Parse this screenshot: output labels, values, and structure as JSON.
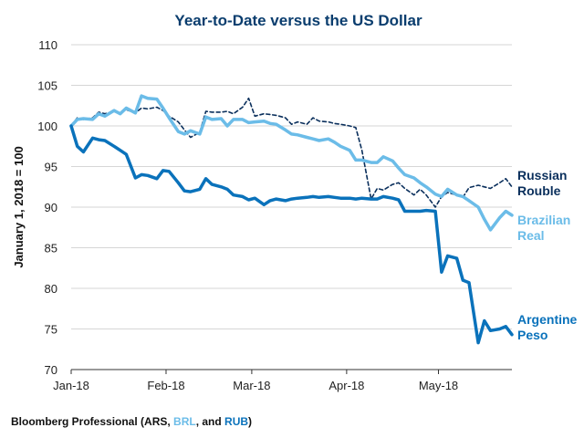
{
  "colors": {
    "title": "#0a3d6e",
    "rub": "#0a2f5c",
    "brl": "#6bbce8",
    "ars": "#0a72bb",
    "grid": "#d6d6d6",
    "axis": "#333333"
  },
  "chart_data": {
    "type": "line",
    "title": "Year-to-Date versus the US Dollar",
    "ylabel": "January 1, 2018 = 100",
    "xlabel": "",
    "ylim": [
      70,
      110
    ],
    "yticks": [
      "70",
      "75",
      "80",
      "85",
      "90",
      "95",
      "100",
      "105",
      "110"
    ],
    "xticks": [
      {
        "date": "2018-01-01",
        "label": "Jan-18"
      },
      {
        "date": "2018-02-01",
        "label": "Feb-18"
      },
      {
        "date": "2018-03-01",
        "label": "Mar-18"
      },
      {
        "date": "2018-04-01",
        "label": "Apr-18"
      },
      {
        "date": "2018-05-01",
        "label": "May-18"
      }
    ],
    "xrange": [
      "2018-01-01",
      "2018-05-25"
    ],
    "grid": "horizontal",
    "series": [
      {
        "key": "rub",
        "name": "Russian Rouble",
        "label_lines": [
          "Russian",
          "Rouble"
        ],
        "style": "dashed",
        "points": [
          [
            "2018-01-01",
            100
          ],
          [
            "2018-01-03",
            101
          ],
          [
            "2018-01-05",
            100.8
          ],
          [
            "2018-01-08",
            101
          ],
          [
            "2018-01-10",
            101.7
          ],
          [
            "2018-01-12",
            101.5
          ],
          [
            "2018-01-15",
            101.8
          ],
          [
            "2018-01-17",
            101.6
          ],
          [
            "2018-01-19",
            102
          ],
          [
            "2018-01-22",
            101.6
          ],
          [
            "2018-01-24",
            102.2
          ],
          [
            "2018-01-26",
            102.1
          ],
          [
            "2018-01-29",
            102.3
          ],
          [
            "2018-01-31",
            101.9
          ],
          [
            "2018-02-02",
            101.2
          ],
          [
            "2018-02-05",
            100.5
          ],
          [
            "2018-02-07",
            99.5
          ],
          [
            "2018-02-09",
            98.6
          ],
          [
            "2018-02-12",
            99.2
          ],
          [
            "2018-02-14",
            101.8
          ],
          [
            "2018-02-16",
            101.7
          ],
          [
            "2018-02-19",
            101.7
          ],
          [
            "2018-02-21",
            101.8
          ],
          [
            "2018-02-23",
            101.5
          ],
          [
            "2018-02-26",
            102.3
          ],
          [
            "2018-02-28",
            103.4
          ],
          [
            "2018-03-02",
            101.2
          ],
          [
            "2018-03-05",
            101.5
          ],
          [
            "2018-03-07",
            101.4
          ],
          [
            "2018-03-09",
            101.3
          ],
          [
            "2018-03-12",
            101
          ],
          [
            "2018-03-14",
            100.2
          ],
          [
            "2018-03-16",
            100.5
          ],
          [
            "2018-03-19",
            100.2
          ],
          [
            "2018-03-21",
            101
          ],
          [
            "2018-03-23",
            100.6
          ],
          [
            "2018-03-26",
            100.5
          ],
          [
            "2018-03-28",
            100.3
          ],
          [
            "2018-03-30",
            100.2
          ],
          [
            "2018-04-02",
            100
          ],
          [
            "2018-04-04",
            99.8
          ],
          [
            "2018-04-06",
            97
          ],
          [
            "2018-04-09",
            91
          ],
          [
            "2018-04-11",
            92.3
          ],
          [
            "2018-04-13",
            92.1
          ],
          [
            "2018-04-16",
            92.8
          ],
          [
            "2018-04-18",
            93
          ],
          [
            "2018-04-20",
            92.3
          ],
          [
            "2018-04-23",
            91.5
          ],
          [
            "2018-04-25",
            92.2
          ],
          [
            "2018-04-27",
            91.5
          ],
          [
            "2018-04-30",
            90
          ],
          [
            "2018-05-02",
            91.3
          ],
          [
            "2018-05-04",
            91.8
          ],
          [
            "2018-05-07",
            91.5
          ],
          [
            "2018-05-09",
            91.2
          ],
          [
            "2018-05-11",
            92.4
          ],
          [
            "2018-05-14",
            92.7
          ],
          [
            "2018-05-16",
            92.5
          ],
          [
            "2018-05-18",
            92.3
          ],
          [
            "2018-05-21",
            93
          ],
          [
            "2018-05-23",
            93.5
          ],
          [
            "2018-05-25",
            92.5
          ]
        ]
      },
      {
        "key": "brl",
        "name": "Brazilian Real",
        "label_lines": [
          "Brazilian",
          "Real"
        ],
        "style": "solid",
        "points": [
          [
            "2018-01-01",
            100
          ],
          [
            "2018-01-03",
            100.8
          ],
          [
            "2018-01-05",
            100.9
          ],
          [
            "2018-01-08",
            100.8
          ],
          [
            "2018-01-10",
            101.5
          ],
          [
            "2018-01-12",
            101.2
          ],
          [
            "2018-01-15",
            101.9
          ],
          [
            "2018-01-17",
            101.5
          ],
          [
            "2018-01-19",
            102.2
          ],
          [
            "2018-01-22",
            101.6
          ],
          [
            "2018-01-24",
            103.7
          ],
          [
            "2018-01-26",
            103.4
          ],
          [
            "2018-01-29",
            103.3
          ],
          [
            "2018-01-31",
            102.2
          ],
          [
            "2018-02-02",
            101
          ],
          [
            "2018-02-05",
            99.3
          ],
          [
            "2018-02-07",
            99
          ],
          [
            "2018-02-09",
            99.4
          ],
          [
            "2018-02-12",
            99
          ],
          [
            "2018-02-14",
            101.1
          ],
          [
            "2018-02-16",
            100.8
          ],
          [
            "2018-02-19",
            100.9
          ],
          [
            "2018-02-21",
            100
          ],
          [
            "2018-02-23",
            100.8
          ],
          [
            "2018-02-26",
            100.8
          ],
          [
            "2018-02-28",
            100.4
          ],
          [
            "2018-03-02",
            100.5
          ],
          [
            "2018-03-05",
            100.6
          ],
          [
            "2018-03-07",
            100.3
          ],
          [
            "2018-03-09",
            100.2
          ],
          [
            "2018-03-12",
            99.5
          ],
          [
            "2018-03-14",
            99
          ],
          [
            "2018-03-16",
            98.9
          ],
          [
            "2018-03-19",
            98.6
          ],
          [
            "2018-03-21",
            98.4
          ],
          [
            "2018-03-23",
            98.2
          ],
          [
            "2018-03-26",
            98.4
          ],
          [
            "2018-03-28",
            98
          ],
          [
            "2018-03-30",
            97.5
          ],
          [
            "2018-04-02",
            97
          ],
          [
            "2018-04-04",
            95.8
          ],
          [
            "2018-04-06",
            95.8
          ],
          [
            "2018-04-09",
            95.5
          ],
          [
            "2018-04-11",
            95.5
          ],
          [
            "2018-04-13",
            96.2
          ],
          [
            "2018-04-16",
            95.7
          ],
          [
            "2018-04-18",
            94.8
          ],
          [
            "2018-04-20",
            94
          ],
          [
            "2018-04-23",
            93.6
          ],
          [
            "2018-04-25",
            93
          ],
          [
            "2018-04-27",
            92.5
          ],
          [
            "2018-04-30",
            91.6
          ],
          [
            "2018-05-02",
            91.3
          ],
          [
            "2018-05-04",
            92.2
          ],
          [
            "2018-05-07",
            91.5
          ],
          [
            "2018-05-09",
            91.3
          ],
          [
            "2018-05-11",
            90.8
          ],
          [
            "2018-05-14",
            90
          ],
          [
            "2018-05-16",
            88.5
          ],
          [
            "2018-05-18",
            87.2
          ],
          [
            "2018-05-21",
            88.7
          ],
          [
            "2018-05-23",
            89.5
          ],
          [
            "2018-05-25",
            89
          ]
        ]
      },
      {
        "key": "ars",
        "name": "Argentine Peso",
        "label_lines": [
          "Argentine",
          "Peso"
        ],
        "style": "solid",
        "points": [
          [
            "2018-01-01",
            100
          ],
          [
            "2018-01-03",
            97.5
          ],
          [
            "2018-01-05",
            96.8
          ],
          [
            "2018-01-08",
            98.5
          ],
          [
            "2018-01-10",
            98.3
          ],
          [
            "2018-01-12",
            98.2
          ],
          [
            "2018-01-15",
            97.5
          ],
          [
            "2018-01-17",
            97
          ],
          [
            "2018-01-19",
            96.5
          ],
          [
            "2018-01-22",
            93.6
          ],
          [
            "2018-01-24",
            94
          ],
          [
            "2018-01-26",
            93.9
          ],
          [
            "2018-01-29",
            93.5
          ],
          [
            "2018-01-31",
            94.5
          ],
          [
            "2018-02-02",
            94.4
          ],
          [
            "2018-02-05",
            93
          ],
          [
            "2018-02-07",
            92
          ],
          [
            "2018-02-09",
            91.9
          ],
          [
            "2018-02-12",
            92.2
          ],
          [
            "2018-02-14",
            93.5
          ],
          [
            "2018-02-16",
            92.8
          ],
          [
            "2018-02-19",
            92.5
          ],
          [
            "2018-02-21",
            92.2
          ],
          [
            "2018-02-23",
            91.5
          ],
          [
            "2018-02-26",
            91.3
          ],
          [
            "2018-02-28",
            90.9
          ],
          [
            "2018-03-02",
            91.1
          ],
          [
            "2018-03-05",
            90.3
          ],
          [
            "2018-03-07",
            90.8
          ],
          [
            "2018-03-09",
            91
          ],
          [
            "2018-03-12",
            90.8
          ],
          [
            "2018-03-14",
            91
          ],
          [
            "2018-03-16",
            91.1
          ],
          [
            "2018-03-19",
            91.2
          ],
          [
            "2018-03-21",
            91.3
          ],
          [
            "2018-03-23",
            91.2
          ],
          [
            "2018-03-26",
            91.3
          ],
          [
            "2018-03-28",
            91.2
          ],
          [
            "2018-03-30",
            91.1
          ],
          [
            "2018-04-02",
            91.1
          ],
          [
            "2018-04-04",
            91
          ],
          [
            "2018-04-06",
            91.1
          ],
          [
            "2018-04-09",
            91
          ],
          [
            "2018-04-11",
            91
          ],
          [
            "2018-04-13",
            91.3
          ],
          [
            "2018-04-16",
            91.1
          ],
          [
            "2018-04-18",
            90.9
          ],
          [
            "2018-04-20",
            89.5
          ],
          [
            "2018-04-23",
            89.5
          ],
          [
            "2018-04-25",
            89.5
          ],
          [
            "2018-04-27",
            89.6
          ],
          [
            "2018-04-30",
            89.5
          ],
          [
            "2018-05-02",
            82
          ],
          [
            "2018-05-04",
            84
          ],
          [
            "2018-05-07",
            83.7
          ],
          [
            "2018-05-09",
            81
          ],
          [
            "2018-05-11",
            80.7
          ],
          [
            "2018-05-14",
            73.3
          ],
          [
            "2018-05-16",
            76
          ],
          [
            "2018-05-18",
            74.8
          ],
          [
            "2018-05-21",
            75
          ],
          [
            "2018-05-23",
            75.3
          ],
          [
            "2018-05-25",
            74.3
          ]
        ]
      }
    ]
  },
  "source": {
    "prefix": "Bloomberg Professional (ARS, ",
    "brl": "BRL",
    "middle": ", and ",
    "rub": "RUB",
    "suffix": ")"
  }
}
